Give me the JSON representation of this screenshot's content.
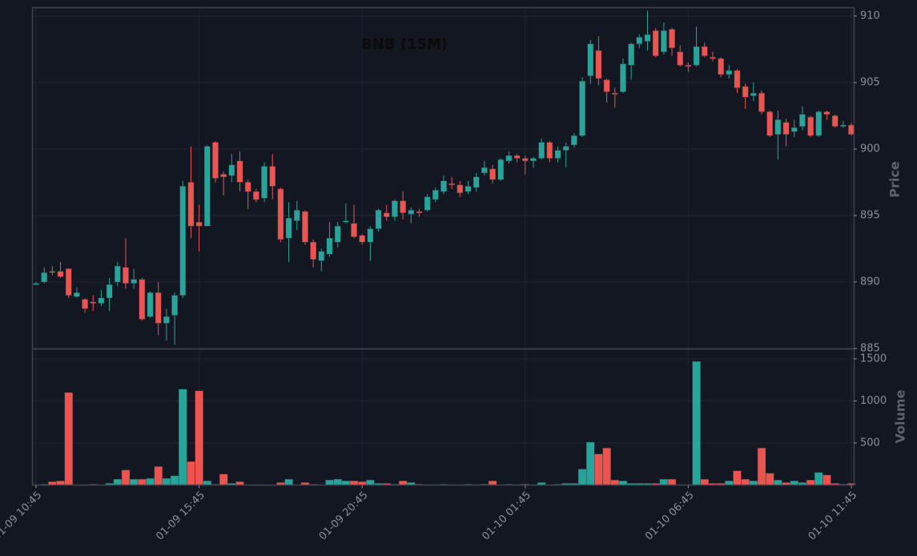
{
  "chart_data": {
    "type": "candlestick",
    "title": "BNB (15M)",
    "ylabel": "Price",
    "volume_label": "Volume",
    "x": [
      "01-09 10:45",
      "01-09 11:00",
      "01-09 11:15",
      "01-09 11:30",
      "01-09 11:45",
      "01-09 12:00",
      "01-09 12:15",
      "01-09 12:30",
      "01-09 12:45",
      "01-09 13:00",
      "01-09 13:15",
      "01-09 13:30",
      "01-09 13:45",
      "01-09 14:00",
      "01-09 14:15",
      "01-09 14:30",
      "01-09 14:45",
      "01-09 15:00",
      "01-09 15:15",
      "01-09 15:30",
      "01-09 15:45",
      "01-09 16:00",
      "01-09 16:15",
      "01-09 16:30",
      "01-09 16:45",
      "01-09 17:00",
      "01-09 17:15",
      "01-09 17:30",
      "01-09 17:45",
      "01-09 18:00",
      "01-09 18:15",
      "01-09 18:30",
      "01-09 18:45",
      "01-09 19:00",
      "01-09 19:15",
      "01-09 19:30",
      "01-09 19:45",
      "01-09 20:00",
      "01-09 20:15",
      "01-09 20:30",
      "01-09 20:45",
      "01-09 21:00",
      "01-09 21:15",
      "01-09 21:30",
      "01-09 21:45",
      "01-09 22:00",
      "01-09 22:15",
      "01-09 22:30",
      "01-09 22:45",
      "01-09 23:00",
      "01-09 23:15",
      "01-09 23:30",
      "01-09 23:45",
      "01-10 00:00",
      "01-10 00:15",
      "01-10 00:30",
      "01-10 00:45",
      "01-10 01:00",
      "01-10 01:15",
      "01-10 01:30",
      "01-10 01:45",
      "01-10 02:00",
      "01-10 02:15",
      "01-10 02:30",
      "01-10 02:45",
      "01-10 03:00",
      "01-10 03:15",
      "01-10 03:30",
      "01-10 03:45",
      "01-10 04:00",
      "01-10 04:15",
      "01-10 04:30",
      "01-10 04:45",
      "01-10 05:00",
      "01-10 05:15",
      "01-10 05:30",
      "01-10 05:45",
      "01-10 06:00",
      "01-10 06:15",
      "01-10 06:30",
      "01-10 06:45",
      "01-10 07:00",
      "01-10 07:15",
      "01-10 07:30",
      "01-10 07:45",
      "01-10 08:00",
      "01-10 08:15",
      "01-10 08:30",
      "01-10 08:45",
      "01-10 09:00",
      "01-10 09:15",
      "01-10 09:30",
      "01-10 09:45",
      "01-10 10:00",
      "01-10 10:15",
      "01-10 10:30",
      "01-10 10:45",
      "01-10 11:00",
      "01-10 11:15",
      "01-10 11:30",
      "01-10 11:45"
    ],
    "open": [
      889.8,
      890.0,
      890.8,
      890.8,
      891.0,
      888.9,
      888.7,
      888.5,
      888.4,
      888.8,
      890.0,
      891.1,
      889.9,
      890.2,
      887.4,
      889.2,
      886.9,
      887.5,
      889.0,
      897.5,
      894.5,
      894.2,
      900.5,
      898.1,
      898.0,
      899.1,
      897.5,
      896.8,
      896.3,
      898.7,
      897.0,
      893.3,
      894.6,
      895.3,
      893.0,
      891.6,
      892.1,
      893.0,
      894.5,
      894.4,
      893.5,
      893.0,
      894.0,
      895.2,
      894.9,
      896.1,
      895.1,
      895.3,
      895.4,
      896.2,
      896.8,
      897.4,
      897.3,
      896.8,
      897.1,
      898.2,
      898.5,
      897.7,
      899.1,
      899.5,
      899.3,
      899.1,
      899.3,
      900.5,
      899.3,
      899.9,
      900.3,
      901.0,
      905.5,
      907.4,
      905.2,
      904.2,
      904.3,
      906.3,
      907.9,
      908.1,
      908.9,
      907.3,
      909.0,
      907.3,
      906.3,
      906.3,
      907.7,
      906.9,
      906.8,
      905.6,
      905.9,
      904.7,
      904.0,
      904.2,
      902.8,
      901.1,
      902.0,
      901.3,
      901.7,
      902.4,
      901.0,
      902.8,
      902.5,
      901.7,
      901.8
    ],
    "high": [
      890.0,
      891.1,
      891.2,
      891.5,
      891.0,
      889.6,
      888.8,
      889.0,
      889.4,
      890.3,
      891.5,
      893.3,
      891.0,
      890.3,
      889.3,
      890.0,
      888.0,
      889.2,
      897.6,
      900.2,
      895.8,
      900.3,
      900.6,
      898.3,
      899.6,
      899.8,
      897.7,
      897.0,
      899.0,
      899.6,
      897.1,
      896.0,
      896.1,
      895.4,
      893.2,
      892.5,
      894.5,
      894.5,
      895.9,
      895.8,
      893.6,
      894.2,
      895.5,
      895.8,
      896.2,
      896.8,
      895.6,
      895.5,
      896.6,
      897.1,
      898.0,
      897.9,
      897.6,
      897.6,
      898.2,
      899.1,
      898.8,
      899.3,
      899.8,
      899.6,
      899.5,
      899.4,
      900.8,
      900.6,
      900.2,
      900.5,
      901.2,
      905.4,
      908.2,
      908.5,
      905.3,
      904.6,
      906.8,
      908.0,
      908.6,
      910.4,
      909.1,
      909.5,
      909.1,
      907.8,
      906.5,
      909.2,
      908.0,
      907.3,
      906.9,
      906.3,
      906.0,
      904.9,
      905.0,
      904.4,
      902.9,
      902.9,
      902.3,
      902.2,
      903.2,
      902.5,
      902.9,
      902.9,
      902.6,
      902.1,
      902.0
    ],
    "low": [
      889.8,
      889.9,
      890.5,
      890.3,
      888.8,
      888.8,
      887.7,
      887.8,
      888.2,
      887.8,
      889.7,
      889.5,
      889.5,
      887.1,
      887.3,
      886.0,
      885.6,
      885.3,
      888.8,
      893.3,
      892.3,
      894.2,
      897.5,
      896.5,
      897.5,
      896.8,
      895.5,
      896.0,
      896.0,
      896.2,
      893.0,
      891.5,
      893.9,
      892.8,
      891.1,
      890.8,
      891.9,
      892.6,
      894.4,
      893.3,
      892.8,
      891.6,
      893.8,
      894.6,
      894.6,
      894.7,
      894.4,
      894.9,
      895.3,
      896.0,
      896.6,
      897.0,
      896.4,
      896.6,
      896.8,
      898.0,
      897.4,
      897.6,
      898.9,
      899.0,
      898.1,
      898.6,
      899.2,
      899.0,
      899.0,
      898.6,
      900.1,
      900.9,
      904.9,
      904.8,
      903.5,
      903.1,
      904.2,
      905.2,
      907.6,
      907.4,
      906.9,
      907.1,
      907.0,
      906.2,
      905.8,
      906.2,
      906.9,
      906.6,
      905.4,
      905.3,
      904.2,
      903.0,
      903.6,
      902.6,
      900.9,
      899.2,
      900.2,
      900.9,
      901.4,
      900.9,
      900.9,
      902.2,
      901.6,
      901.6,
      901.0
    ],
    "close": [
      889.9,
      890.7,
      890.7,
      890.4,
      889.0,
      889.2,
      888.0,
      888.4,
      888.8,
      889.8,
      891.2,
      889.9,
      890.2,
      887.2,
      889.2,
      886.9,
      887.4,
      889.0,
      897.2,
      894.2,
      894.2,
      900.2,
      897.8,
      897.9,
      898.8,
      897.5,
      896.8,
      896.2,
      898.7,
      897.2,
      893.2,
      894.8,
      895.4,
      893.0,
      891.7,
      892.3,
      893.3,
      894.2,
      894.6,
      893.4,
      893.0,
      894.0,
      895.4,
      894.9,
      896.1,
      895.2,
      895.4,
      895.2,
      896.4,
      896.9,
      897.6,
      897.3,
      896.7,
      897.2,
      897.9,
      898.6,
      897.7,
      899.2,
      899.5,
      899.3,
      899.1,
      899.3,
      900.5,
      899.3,
      899.9,
      900.2,
      901.0,
      905.1,
      907.9,
      905.3,
      904.3,
      904.1,
      906.4,
      907.9,
      908.4,
      908.6,
      907.0,
      908.9,
      907.6,
      906.3,
      906.2,
      907.7,
      907.0,
      906.8,
      905.6,
      905.9,
      904.6,
      903.9,
      904.2,
      902.8,
      901.0,
      902.2,
      901.1,
      901.6,
      902.6,
      901.0,
      902.8,
      902.6,
      901.7,
      901.8,
      901.1
    ],
    "volume": [
      5,
      10,
      40,
      50,
      1100,
      5,
      5,
      10,
      5,
      20,
      70,
      180,
      70,
      70,
      80,
      220,
      80,
      110,
      1140,
      280,
      1120,
      50,
      10,
      130,
      20,
      40,
      5,
      5,
      5,
      5,
      30,
      70,
      5,
      30,
      10,
      5,
      60,
      70,
      50,
      50,
      40,
      60,
      20,
      20,
      10,
      50,
      30,
      10,
      5,
      5,
      10,
      5,
      5,
      10,
      5,
      10,
      50,
      5,
      10,
      5,
      10,
      5,
      30,
      5,
      10,
      20,
      20,
      190,
      510,
      370,
      440,
      60,
      50,
      20,
      20,
      20,
      20,
      70,
      70,
      5,
      5,
      1470,
      70,
      20,
      20,
      50,
      170,
      70,
      50,
      440,
      140,
      60,
      30,
      50,
      30,
      60,
      150,
      120,
      20,
      10,
      20
    ],
    "up_color": "#26a69a",
    "down_color": "#ef5350",
    "ylim": [
      885,
      910.66
    ],
    "yticks": [
      885,
      890,
      895,
      900,
      905,
      910
    ],
    "volume_ylim": [
      0,
      1614
    ],
    "volume_yticks": [
      500,
      1000,
      1500
    ],
    "xticks": [
      {
        "value": 0,
        "label": "01-09 10:45"
      },
      {
        "value": 20,
        "label": "01-09 15:45"
      },
      {
        "value": 40,
        "label": "01-09 20:45"
      },
      {
        "value": 60,
        "label": "01-10 01:45"
      },
      {
        "value": 80,
        "label": "01-10 06:45"
      },
      {
        "value": 100,
        "label": "01-10 11:45"
      }
    ],
    "grid": true
  }
}
